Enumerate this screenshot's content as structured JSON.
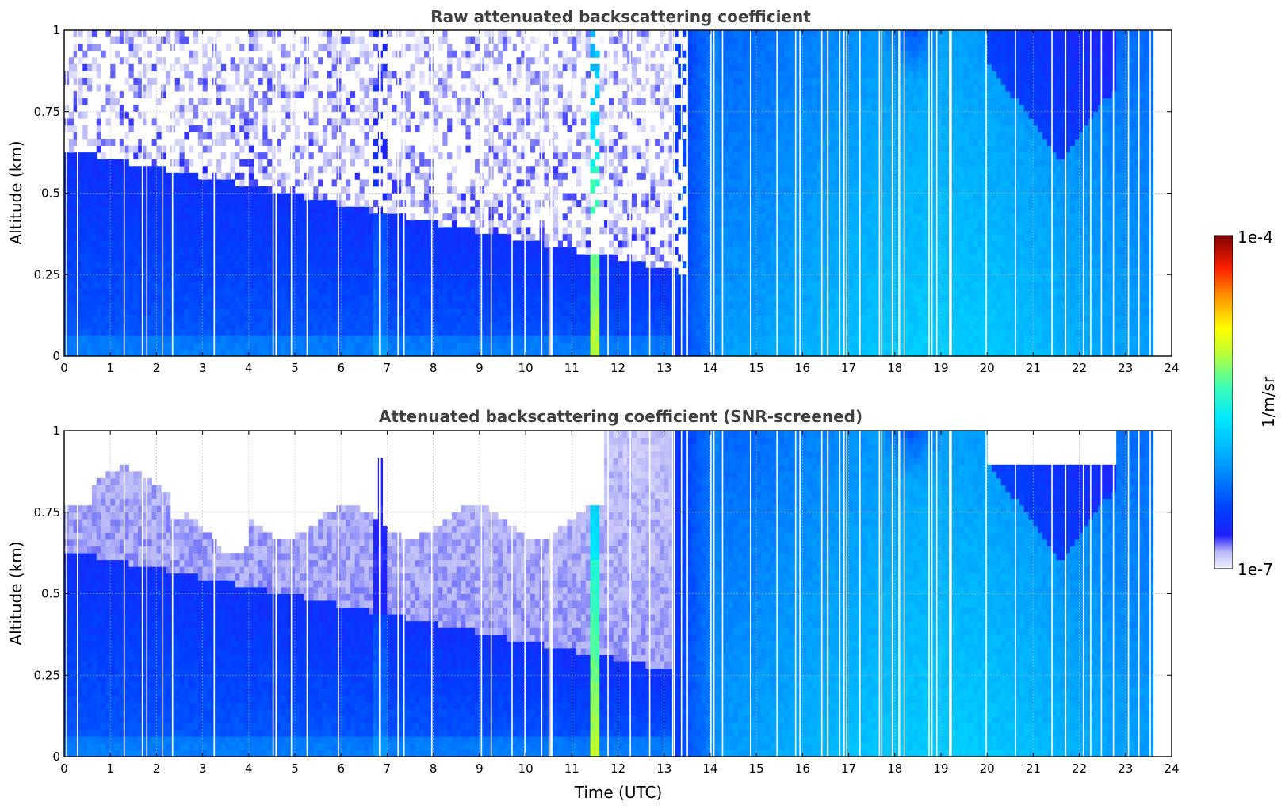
{
  "chart_data": [
    {
      "type": "heatmap",
      "title": "Raw attenuated backscattering coefficient",
      "xlabel": "",
      "ylabel": "Altitude (km)",
      "xlim": [
        0,
        24
      ],
      "ylim": [
        0,
        1
      ],
      "x_ticks": [
        "0",
        "1",
        "2",
        "3",
        "4",
        "5",
        "6",
        "7",
        "8",
        "9",
        "10",
        "11",
        "12",
        "13",
        "14",
        "15",
        "16",
        "17",
        "18",
        "19",
        "20",
        "21",
        "22",
        "23",
        "24"
      ],
      "y_ticks": [
        "0",
        "0.25",
        "0.5",
        "0.75",
        "1"
      ],
      "grid": true,
      "screened": false
    },
    {
      "type": "heatmap",
      "title": "Attenuated backscattering coefficient (SNR-screened)",
      "xlabel": "Time (UTC)",
      "ylabel": "Altitude (km)",
      "xlim": [
        0,
        24
      ],
      "ylim": [
        0,
        1
      ],
      "x_ticks": [
        "0",
        "1",
        "2",
        "3",
        "4",
        "5",
        "6",
        "7",
        "8",
        "9",
        "10",
        "11",
        "12",
        "13",
        "14",
        "15",
        "16",
        "17",
        "18",
        "19",
        "20",
        "21",
        "22",
        "23",
        "24"
      ],
      "y_ticks": [
        "0",
        "0.25",
        "0.5",
        "0.75",
        "1"
      ],
      "grid": true,
      "screened": true
    }
  ],
  "colorbar": {
    "label": "1/m/sr",
    "max_label": "1e-4",
    "min_label": "1e-7",
    "scale": "log",
    "colormap": "jet-with-white-low"
  }
}
